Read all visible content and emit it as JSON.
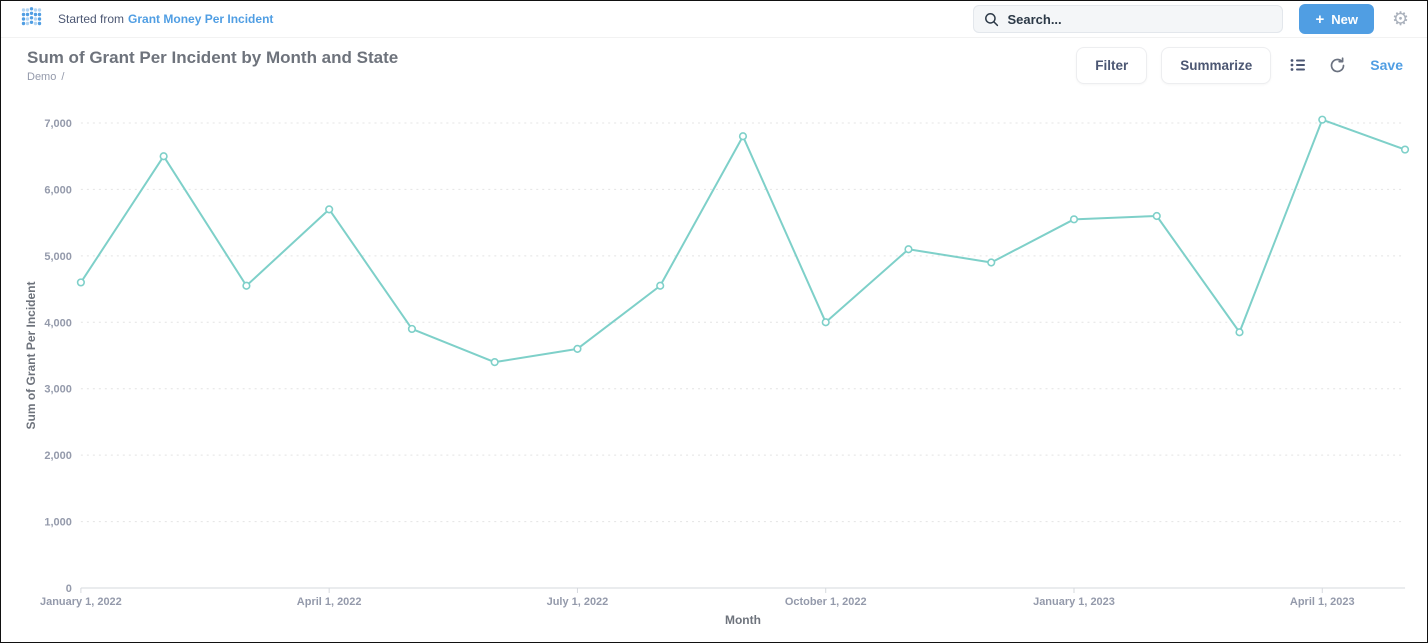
{
  "topbar": {
    "started_from": "Started from",
    "source_link": "Grant Money Per Incident",
    "search_placeholder": "Search...",
    "plus": "+",
    "new_label": "New"
  },
  "toolbar": {
    "title": "Sum of Grant Per Incident by Month and State",
    "breadcrumb": "Demo",
    "breadcrumb_separator": "/",
    "filter_label": "Filter",
    "summarize_label": "Summarize",
    "save_label": "Save"
  },
  "colors": {
    "accent": "#509ee3",
    "line": "#7ed0c9",
    "grid": "#e4e4e4",
    "axis_line": "#d6d9de",
    "tick_text": "#949aab",
    "axis_title": "#6e737c"
  },
  "chart_data": {
    "type": "line",
    "title": "Sum of Grant Per Incident by Month and State",
    "xlabel": "Month",
    "ylabel": "Sum of Grant Per Incident",
    "ylim": [
      0,
      7000
    ],
    "y_ticks": [
      0,
      1000,
      2000,
      3000,
      4000,
      5000,
      6000,
      7000
    ],
    "x": [
      "January 2022",
      "February 2022",
      "March 2022",
      "April 2022",
      "May 2022",
      "June 2022",
      "July 2022",
      "August 2022",
      "September 2022",
      "October 2022",
      "November 2022",
      "December 2022",
      "January 2023",
      "February 2023",
      "March 2023",
      "April 2023",
      "May 2023"
    ],
    "values": [
      4600,
      6500,
      4550,
      5700,
      3900,
      3400,
      3600,
      4550,
      6800,
      4000,
      5100,
      4900,
      5550,
      5600,
      3850,
      7050,
      6600
    ],
    "x_tick_indices": [
      0,
      3,
      6,
      9,
      12,
      15
    ],
    "x_tick_labels": [
      "January 1, 2022",
      "April 1, 2022",
      "July 1, 2022",
      "October 1, 2022",
      "January 1, 2023",
      "April 1, 2023"
    ],
    "grid": true,
    "legend": "none"
  }
}
